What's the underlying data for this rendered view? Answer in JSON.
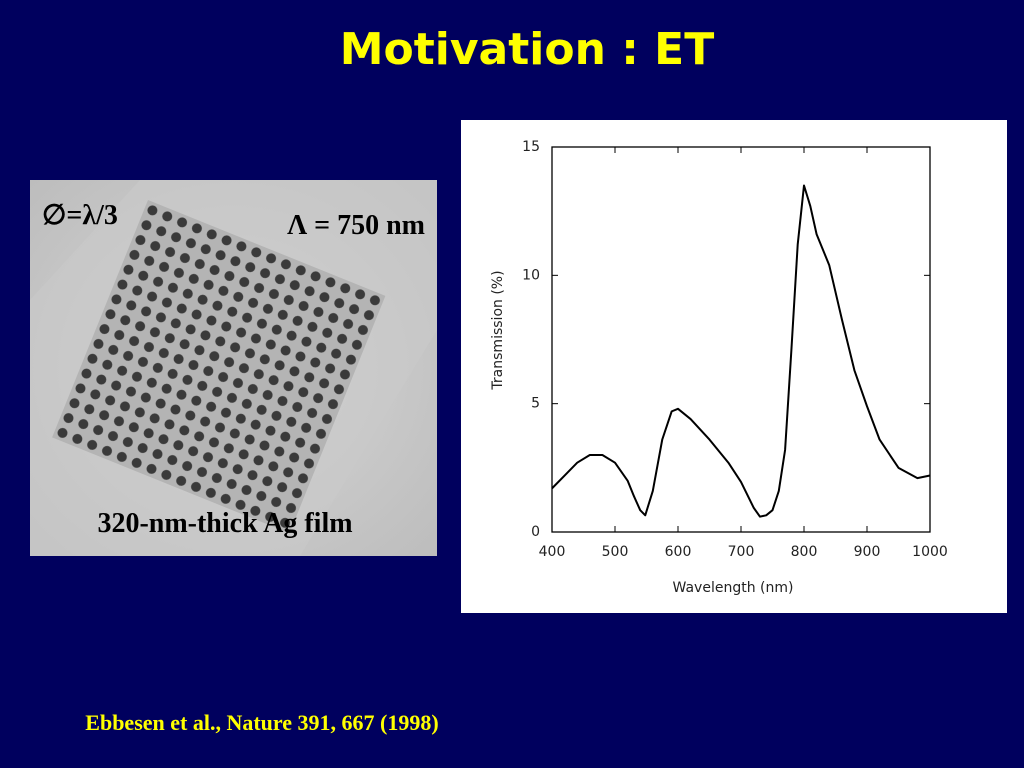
{
  "slide": {
    "title": "Motivation : ET",
    "image_labels": [
      "∅=λ/3",
      "Λ = 750 nm",
      "320-nm-thick Ag film"
    ],
    "citation": "Ebbesen et al., Nature 391, 667 (1998)"
  },
  "chart_data": {
    "type": "line",
    "xlabel": "Wavelength (nm)",
    "ylabel": "Transmission (%)",
    "x": [
      400,
      420,
      440,
      460,
      480,
      500,
      520,
      530,
      540,
      548,
      560,
      575,
      590,
      600,
      620,
      650,
      680,
      700,
      720,
      730,
      740,
      750,
      760,
      770,
      780,
      790,
      800,
      810,
      820,
      840,
      860,
      880,
      900,
      920,
      950,
      980,
      1000
    ],
    "series": [
      {
        "color": "#000000",
        "values": [
          1.7,
          2.2,
          2.7,
          3.0,
          3.0,
          2.7,
          2.0,
          1.4,
          0.85,
          0.65,
          1.6,
          3.6,
          4.7,
          4.8,
          4.4,
          3.6,
          2.7,
          1.95,
          0.95,
          0.6,
          0.65,
          0.85,
          1.6,
          3.2,
          7.1,
          11.2,
          13.5,
          12.7,
          11.6,
          10.4,
          8.3,
          6.3,
          4.9,
          3.6,
          2.5,
          2.1,
          2.2
        ]
      }
    ],
    "xlim": [
      400,
      1000
    ],
    "xticks": [
      400,
      500,
      600,
      700,
      800,
      900,
      1000
    ],
    "ylim": [
      0,
      15
    ],
    "yticks": [
      0,
      5,
      10,
      15
    ],
    "grid": false
  }
}
